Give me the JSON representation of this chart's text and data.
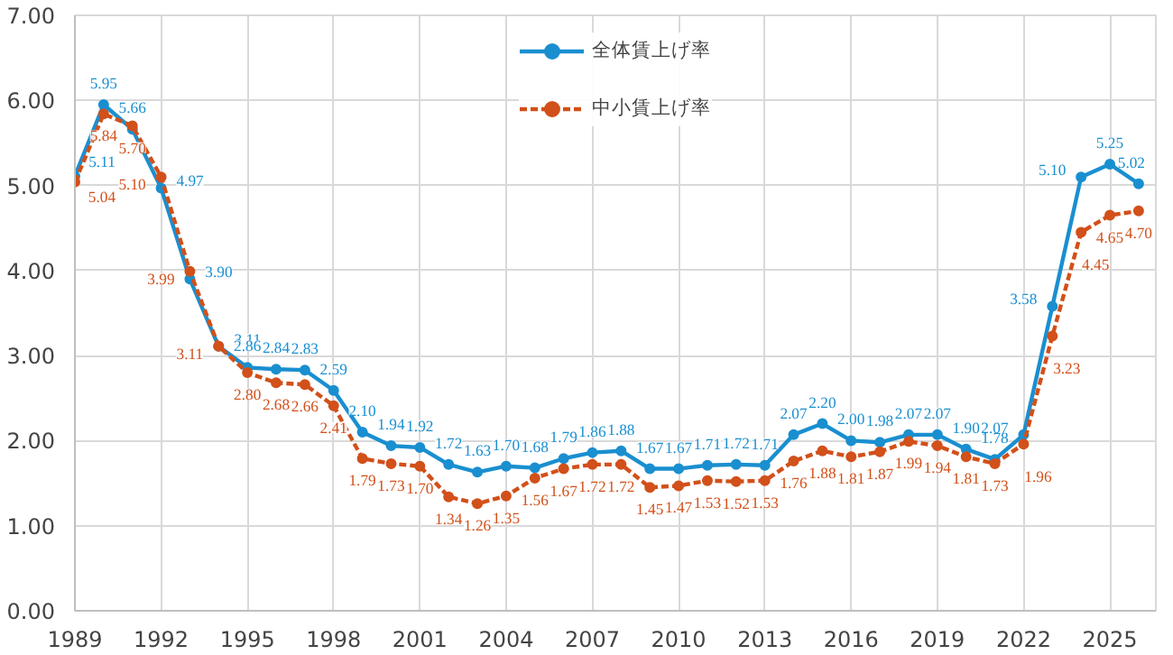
{
  "chart_data": {
    "type": "line",
    "x": [
      1989,
      1990,
      1991,
      1992,
      1993,
      1994,
      1995,
      1996,
      1997,
      1998,
      1999,
      2000,
      2001,
      2002,
      2003,
      2004,
      2005,
      2006,
      2007,
      2008,
      2009,
      2010,
      2011,
      2012,
      2013,
      2014,
      2015,
      2016,
      2017,
      2018,
      2019,
      2020,
      2021,
      2022,
      2023,
      2024,
      2025,
      2026
    ],
    "series": [
      {
        "name": "全体賃上げ率",
        "color": "#1a8fd0",
        "line_style": "solid",
        "value_labels": [
          "5.11",
          "5.95",
          "5.66",
          "4.97",
          "3.90",
          "3.11",
          "2.86",
          "2.84",
          "2.83",
          "2.59",
          "2.10",
          "1.94",
          "1.92",
          "1.72",
          "1.63",
          "1.70",
          "1.68",
          "1.79",
          "1.86",
          "1.88",
          "1.67",
          "1.67",
          "1.71",
          "1.72",
          "1.71",
          "2.07",
          "2.20",
          "2.00",
          "1.98",
          "2.07",
          "2.07",
          "1.90",
          "1.78",
          "2.07",
          "3.58",
          "5.10",
          "5.25",
          "5.02"
        ],
        "values": [
          5.11,
          5.95,
          5.66,
          4.97,
          3.9,
          3.11,
          2.86,
          2.84,
          2.83,
          2.59,
          2.1,
          1.94,
          1.92,
          1.72,
          1.63,
          1.7,
          1.68,
          1.79,
          1.86,
          1.88,
          1.67,
          1.67,
          1.71,
          1.72,
          1.71,
          2.07,
          2.2,
          2.0,
          1.98,
          2.07,
          2.07,
          1.9,
          1.78,
          2.07,
          3.58,
          5.1,
          5.25,
          5.02
        ]
      },
      {
        "name": "中小賃上げ率",
        "color": "#d2501a",
        "line_style": "dashed",
        "value_labels": [
          "5.04",
          "5.84",
          "5.70",
          "5.10",
          "3.99",
          "3.11",
          "2.80",
          "2.68",
          "2.66",
          "2.41",
          "1.79",
          "1.73",
          "1.70",
          "1.34",
          "1.26",
          "1.35",
          "1.56",
          "1.67",
          "1.72",
          "1.72",
          "1.45",
          "1.47",
          "1.53",
          "1.52",
          "1.53",
          "1.76",
          "1.88",
          "1.81",
          "1.87",
          "1.99",
          "1.94",
          "1.81",
          "1.73",
          "1.96",
          "3.23",
          "4.45",
          "4.65",
          "4.70"
        ],
        "values": [
          5.04,
          5.84,
          5.7,
          5.1,
          3.99,
          3.11,
          2.8,
          2.68,
          2.66,
          2.41,
          1.79,
          1.73,
          1.7,
          1.34,
          1.26,
          1.35,
          1.56,
          1.67,
          1.72,
          1.72,
          1.45,
          1.47,
          1.53,
          1.52,
          1.53,
          1.76,
          1.88,
          1.81,
          1.87,
          1.99,
          1.94,
          1.81,
          1.73,
          1.96,
          3.23,
          4.45,
          4.65,
          4.7
        ]
      }
    ],
    "xlim": [
      1989,
      2026.6
    ],
    "xticks": [
      1989,
      1992,
      1995,
      1998,
      2001,
      2004,
      2007,
      2010,
      2013,
      2016,
      2019,
      2022,
      2025
    ],
    "ylim": [
      0,
      7
    ],
    "yticks": [
      {
        "value": 0,
        "label": "0.00"
      },
      {
        "value": 1,
        "label": "1.00"
      },
      {
        "value": 2,
        "label": "2.00"
      },
      {
        "value": 3,
        "label": "3.00"
      },
      {
        "value": 4,
        "label": "4.00"
      },
      {
        "value": 5,
        "label": "5.00"
      },
      {
        "value": 6,
        "label": "6.00"
      },
      {
        "value": 7,
        "label": "7.00"
      }
    ],
    "grid": true,
    "legend": "top",
    "marker": "circle"
  }
}
